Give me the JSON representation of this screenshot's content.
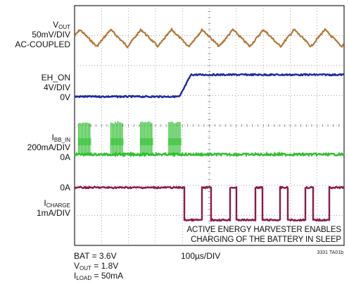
{
  "chart_data": {
    "type": "line",
    "title": "",
    "grid": true,
    "grid_divisions": {
      "x": 10,
      "y": 8
    },
    "time_per_div": "100µs/DIV",
    "conditions": [
      "BAT = 3.6V",
      "V_OUT = 1.8V",
      "I_LOAD = 50mA"
    ],
    "annotation": [
      "ACTIVE ENERGY HARVESTER ENABLES",
      "CHARGING OF THE BATTERY IN SLEEP"
    ],
    "figure_ref": "3331 TA01b",
    "series": [
      {
        "name": "VOUT",
        "color": "#b5773a",
        "scale": "50mV/DIV",
        "coupling": "AC-COUPLED",
        "description": "sawtooth ripple, ~9 cycles across screen"
      },
      {
        "name": "EH_ON",
        "color": "#1e2a9e",
        "scale": "4V/DIV",
        "ground_label": "0V",
        "x_transition_div": 3.9,
        "low_div": 0,
        "high_div": 1.0
      },
      {
        "name": "IBB_IN",
        "color": "#2fbf2f",
        "scale": "200mA/DIV",
        "ground_label": "0A",
        "burst_x_div": [
          0.15,
          1.35,
          2.45,
          3.5
        ],
        "burst_height_div": 1.8
      },
      {
        "name": "ICHARGE",
        "color": "#8a1a4a",
        "scale": "1mA/DIV",
        "ground_label": "0A",
        "x_start_div": 4.0,
        "low_level_div": -1.6,
        "pulse_x_div": [
          [
            4.05,
            4.7
          ],
          [
            5.05,
            5.75
          ],
          [
            6.0,
            6.7
          ],
          [
            6.95,
            7.6
          ],
          [
            7.9,
            8.55
          ],
          [
            8.85,
            9.45
          ]
        ]
      }
    ]
  },
  "labels": {
    "vout_name": "V",
    "vout_sub": "OUT",
    "vout_scale": "50mV/DIV",
    "vout_coupling": "AC-COUPLED",
    "eh_name": "EH_ON",
    "eh_scale": "4V/DIV",
    "eh_gnd": "0V",
    "ibb_name": "I",
    "ibb_sub": "BB_IN",
    "ibb_scale": "200mA/DIV",
    "ibb_gnd": "0A",
    "ich_gnd": "0A",
    "ich_name": "I",
    "ich_sub": "CHARGE",
    "ich_scale": "1mA/DIV"
  },
  "bottom": {
    "bat": "BAT = 3.6V",
    "vout_pre": "V",
    "vout_sub": "OUT",
    "vout_val": " = 1.8V",
    "iload_pre": "I",
    "iload_sub": "LOAD",
    "iload_val": " = 50mA",
    "timebase": "100µs/DIV",
    "ref": "3331 TA01b"
  }
}
